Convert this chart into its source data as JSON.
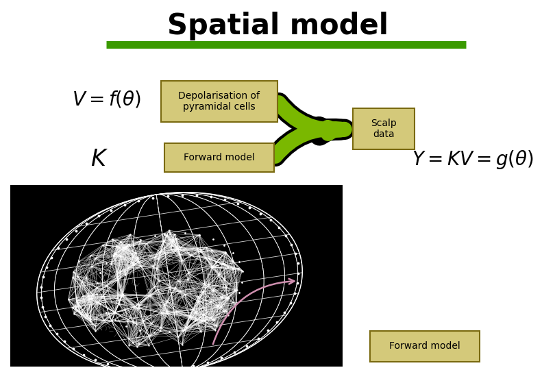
{
  "title": "Spatial model",
  "title_fontsize": 30,
  "title_color": "#000000",
  "bg_color": "#ffffff",
  "green_line_color": "#3a9a00",
  "box_facecolor": "#d4c97a",
  "box_edgecolor": "#7a6a10",
  "depo_text": "Depolarisation of\npyramidal cells",
  "forward_text": "Forward model",
  "scalp_text": "Scalp\ndata",
  "arrow_green": "#7ab800",
  "arrow_black": "#000000",
  "formula_color": "#000000",
  "formula_fontsize": 20,
  "pink_arrow_color": "#d090b0",
  "forward_label_text": "Forward model"
}
